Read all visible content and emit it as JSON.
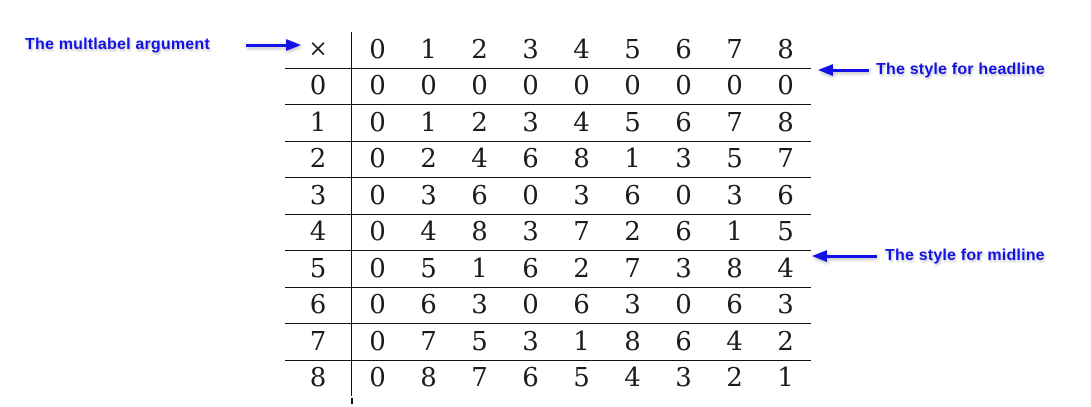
{
  "annotations": {
    "multlabel": {
      "text": "The multlabel argument"
    },
    "headline": {
      "text": "The style for headline"
    },
    "midline": {
      "text": "The style for midline"
    }
  },
  "table": {
    "corner": "×",
    "col_headers": [
      "0",
      "1",
      "2",
      "3",
      "4",
      "5",
      "6",
      "7",
      "8"
    ],
    "rows": [
      {
        "label": "0",
        "values": [
          "0",
          "0",
          "0",
          "0",
          "0",
          "0",
          "0",
          "0",
          "0"
        ]
      },
      {
        "label": "1",
        "values": [
          "0",
          "1",
          "2",
          "3",
          "4",
          "5",
          "6",
          "7",
          "8"
        ]
      },
      {
        "label": "2",
        "values": [
          "0",
          "2",
          "4",
          "6",
          "8",
          "1",
          "3",
          "5",
          "7"
        ]
      },
      {
        "label": "3",
        "values": [
          "0",
          "3",
          "6",
          "0",
          "3",
          "6",
          "0",
          "3",
          "6"
        ]
      },
      {
        "label": "4",
        "values": [
          "0",
          "4",
          "8",
          "3",
          "7",
          "2",
          "6",
          "1",
          "5"
        ]
      },
      {
        "label": "5",
        "values": [
          "0",
          "5",
          "1",
          "6",
          "2",
          "7",
          "3",
          "8",
          "4"
        ]
      },
      {
        "label": "6",
        "values": [
          "0",
          "6",
          "3",
          "0",
          "6",
          "3",
          "0",
          "6",
          "3"
        ]
      },
      {
        "label": "7",
        "values": [
          "0",
          "7",
          "5",
          "3",
          "1",
          "8",
          "6",
          "4",
          "2"
        ]
      },
      {
        "label": "8",
        "values": [
          "0",
          "8",
          "7",
          "6",
          "5",
          "4",
          "3",
          "2",
          "1"
        ]
      }
    ]
  },
  "colors": {
    "annotation_blue": "#1212e8",
    "table_text": "#1c1c1c",
    "rule": "#111111"
  }
}
